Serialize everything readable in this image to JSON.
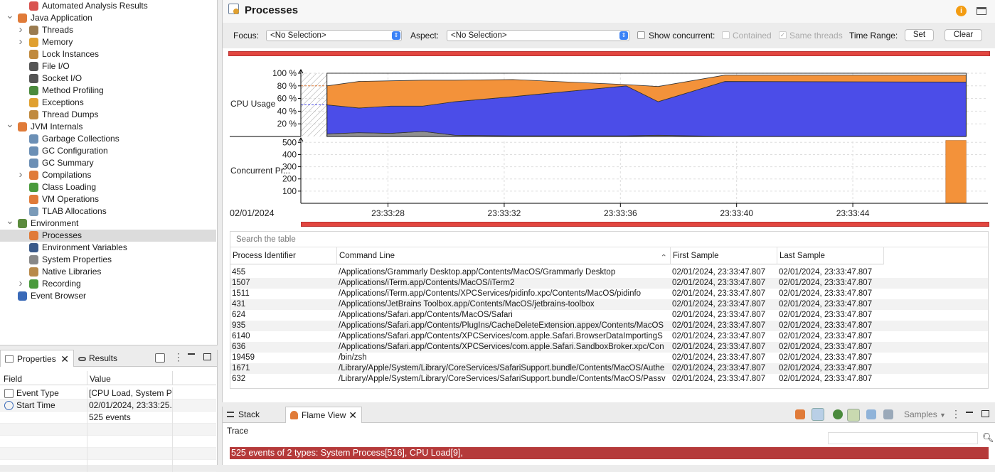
{
  "tree": {
    "items": [
      {
        "label": "Automated Analysis Results",
        "level": 1,
        "expanded": null,
        "icon": "analysis-icon",
        "color": "#d9534f"
      },
      {
        "label": "Java Application",
        "level": 0,
        "expanded": true,
        "icon": "java-app-icon",
        "color": "#e07b39"
      },
      {
        "label": "Threads",
        "level": 1,
        "expanded": false,
        "icon": "threads-icon",
        "color": "#9a7b4f"
      },
      {
        "label": "Memory",
        "level": 1,
        "expanded": false,
        "icon": "memory-icon",
        "color": "#e0a030"
      },
      {
        "label": "Lock Instances",
        "level": 1,
        "expanded": null,
        "icon": "lock-icon",
        "color": "#c08a3e"
      },
      {
        "label": "File I/O",
        "level": 1,
        "expanded": null,
        "icon": "file-io-icon",
        "color": "#555"
      },
      {
        "label": "Socket I/O",
        "level": 1,
        "expanded": null,
        "icon": "socket-io-icon",
        "color": "#555"
      },
      {
        "label": "Method Profiling",
        "level": 1,
        "expanded": null,
        "icon": "method-profiling-icon",
        "color": "#4a8a3c"
      },
      {
        "label": "Exceptions",
        "level": 1,
        "expanded": null,
        "icon": "exceptions-icon",
        "color": "#e0a030"
      },
      {
        "label": "Thread Dumps",
        "level": 1,
        "expanded": null,
        "icon": "thread-dumps-icon",
        "color": "#c08a3e"
      },
      {
        "label": "JVM Internals",
        "level": 0,
        "expanded": true,
        "icon": "jvm-internals-icon",
        "color": "#e07b39"
      },
      {
        "label": "Garbage Collections",
        "level": 1,
        "expanded": null,
        "icon": "garbage-collections-icon",
        "color": "#6b8fb5"
      },
      {
        "label": "GC Configuration",
        "level": 1,
        "expanded": null,
        "icon": "gc-configuration-icon",
        "color": "#6b8fb5"
      },
      {
        "label": "GC Summary",
        "level": 1,
        "expanded": null,
        "icon": "gc-summary-icon",
        "color": "#6b8fb5"
      },
      {
        "label": "Compilations",
        "level": 1,
        "expanded": false,
        "icon": "compilations-icon",
        "color": "#e07b39"
      },
      {
        "label": "Class Loading",
        "level": 1,
        "expanded": null,
        "icon": "class-loading-icon",
        "color": "#4a9a3c"
      },
      {
        "label": "VM Operations",
        "level": 1,
        "expanded": null,
        "icon": "vm-operations-icon",
        "color": "#e07b39"
      },
      {
        "label": "TLAB Allocations",
        "level": 1,
        "expanded": null,
        "icon": "tlab-allocations-icon",
        "color": "#7a9ab8"
      },
      {
        "label": "Environment",
        "level": 0,
        "expanded": true,
        "icon": "environment-icon",
        "color": "#5a8a3c"
      },
      {
        "label": "Processes",
        "level": 1,
        "expanded": null,
        "icon": "processes-icon",
        "color": "#e07b39",
        "selected": true
      },
      {
        "label": "Environment Variables",
        "level": 1,
        "expanded": null,
        "icon": "environment-variables-icon",
        "color": "#3a5a8a"
      },
      {
        "label": "System Properties",
        "level": 1,
        "expanded": null,
        "icon": "system-properties-icon",
        "color": "#888"
      },
      {
        "label": "Native Libraries",
        "level": 1,
        "expanded": null,
        "icon": "native-libraries-icon",
        "color": "#b88a4a"
      },
      {
        "label": "Recording",
        "level": 1,
        "expanded": false,
        "icon": "recording-icon",
        "color": "#4a9a3c"
      },
      {
        "label": "Event Browser",
        "level": 0,
        "expanded": null,
        "icon": "event-browser-icon",
        "color": "#3a6ab8"
      }
    ]
  },
  "properties": {
    "tabs": {
      "properties": "Properties",
      "results": "Results"
    },
    "headers": {
      "field": "Field",
      "value": "Value"
    },
    "rows": [
      {
        "field": "Event Type",
        "value": "[CPU Load, System Pr"
      },
      {
        "field": "Start Time",
        "value": "02/01/2024, 23:33:25."
      },
      {
        "field": "",
        "value": "525 events"
      }
    ]
  },
  "page": {
    "title": "Processes",
    "focus_label": "Focus:",
    "focus_value": "<No Selection>",
    "aspect_label": "Aspect:",
    "aspect_value": "<No Selection>",
    "show_concurrent": "Show concurrent:",
    "contained": "Contained",
    "same_threads": "Same threads",
    "time_range": "Time Range:",
    "set": "Set",
    "clear": "Clear"
  },
  "chart_data": {
    "type": "area",
    "date_label": "02/01/2024",
    "x_ticks": [
      "23:33:28",
      "23:33:32",
      "23:33:36",
      "23:33:40",
      "23:33:44"
    ],
    "cpu": {
      "ylabel": "CPU Usage",
      "y_ticks": [
        "100 %",
        "80 %",
        "60 %",
        "40 %",
        "20 %"
      ],
      "ylim": [
        0,
        100
      ],
      "x": [
        25.9,
        27.0,
        28.1,
        29.2,
        30.3,
        32.3,
        36.2,
        37.3,
        39.6,
        47.9
      ],
      "series": [
        {
          "color": "#909090",
          "values": [
            4,
            6,
            5,
            8,
            2,
            1,
            1,
            2,
            0,
            0
          ]
        },
        {
          "color": "#4b4de8",
          "values": [
            46,
            39,
            43,
            40,
            53,
            62,
            79,
            53,
            87,
            86
          ]
        },
        {
          "color": "#f3923a",
          "values": [
            30,
            42,
            40,
            41,
            34,
            27,
            2,
            24,
            10,
            11
          ]
        }
      ]
    },
    "concurrent": {
      "ylabel": "Concurrent Pr...",
      "y_ticks": [
        "500",
        "400",
        "300",
        "200",
        "100"
      ],
      "ylim": [
        0,
        500
      ],
      "bar": {
        "x_start": 47.2,
        "x_end": 47.9,
        "value": 516,
        "color": "#f3923a"
      }
    }
  },
  "table": {
    "search_placeholder": "Search the table",
    "headers": [
      "Process Identifier",
      "Command Line",
      "First Sample",
      "Last Sample"
    ],
    "rows": [
      [
        "455",
        "/Applications/Grammarly Desktop.app/Contents/MacOS/Grammarly Desktop",
        "02/01/2024, 23:33:47.807",
        "02/01/2024, 23:33:47.807"
      ],
      [
        "1507",
        "/Applications/iTerm.app/Contents/MacOS/iTerm2",
        "02/01/2024, 23:33:47.807",
        "02/01/2024, 23:33:47.807"
      ],
      [
        "1511",
        "/Applications/iTerm.app/Contents/XPCServices/pidinfo.xpc/Contents/MacOS/pidinfo",
        "02/01/2024, 23:33:47.807",
        "02/01/2024, 23:33:47.807"
      ],
      [
        "431",
        "/Applications/JetBrains Toolbox.app/Contents/MacOS/jetbrains-toolbox",
        "02/01/2024, 23:33:47.807",
        "02/01/2024, 23:33:47.807"
      ],
      [
        "624",
        "/Applications/Safari.app/Contents/MacOS/Safari",
        "02/01/2024, 23:33:47.807",
        "02/01/2024, 23:33:47.807"
      ],
      [
        "935",
        "/Applications/Safari.app/Contents/PlugIns/CacheDeleteExtension.appex/Contents/MacOS",
        "02/01/2024, 23:33:47.807",
        "02/01/2024, 23:33:47.807"
      ],
      [
        "6140",
        "/Applications/Safari.app/Contents/XPCServices/com.apple.Safari.BrowserDataImportingS",
        "02/01/2024, 23:33:47.807",
        "02/01/2024, 23:33:47.807"
      ],
      [
        "636",
        "/Applications/Safari.app/Contents/XPCServices/com.apple.Safari.SandboxBroker.xpc/Con",
        "02/01/2024, 23:33:47.807",
        "02/01/2024, 23:33:47.807"
      ],
      [
        "19459",
        "/bin/zsh",
        "02/01/2024, 23:33:47.807",
        "02/01/2024, 23:33:47.807"
      ],
      [
        "1671",
        "/Library/Apple/System/Library/CoreServices/SafariSupport.bundle/Contents/MacOS/Authe",
        "02/01/2024, 23:33:47.807",
        "02/01/2024, 23:33:47.807"
      ],
      [
        "632",
        "/Library/Apple/System/Library/CoreServices/SafariSupport.bundle/Contents/MacOS/Passv",
        "02/01/2024, 23:33:47.807",
        "02/01/2024, 23:33:47.807"
      ]
    ]
  },
  "bottom": {
    "tabs": {
      "stack_trace": "Stack Trace",
      "flame_view": "Flame View"
    },
    "samples": "Samples",
    "summary": "525 events of 2 types: System Process[516], CPU Load[9],"
  }
}
